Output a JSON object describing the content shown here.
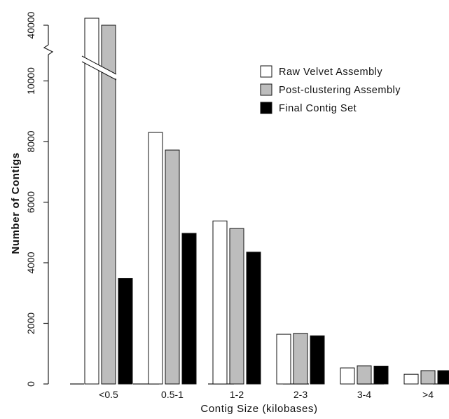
{
  "chart_data": {
    "type": "bar",
    "title": "",
    "xlabel": "Contig Size (kilobases)",
    "ylabel": "Number of Contigs",
    "categories": [
      "<0.5",
      "0.5-1",
      "1-2",
      "2-3",
      "3-4",
      ">4"
    ],
    "series": [
      {
        "name": "Raw Velvet Assembly",
        "values": [
          40500,
          8300,
          5380,
          1640,
          530,
          320
        ],
        "color": "#ffffff"
      },
      {
        "name": "Post-clustering Assembly",
        "values": [
          40000,
          7720,
          5130,
          1670,
          600,
          440
        ],
        "color": "#bdbdbd"
      },
      {
        "name": "Final Contig Set",
        "values": [
          3480,
          4970,
          4350,
          1590,
          590,
          440
        ],
        "color": "#000000"
      }
    ],
    "y_ticks_lower": [
      0,
      2000,
      4000,
      6000,
      8000,
      10000
    ],
    "y_ticks_upper": [
      40000
    ],
    "y_axis_break": {
      "lower_range": [
        0,
        10500
      ],
      "upper_range": [
        39500,
        40600
      ]
    },
    "grid": false,
    "legend_position": "top-right"
  }
}
